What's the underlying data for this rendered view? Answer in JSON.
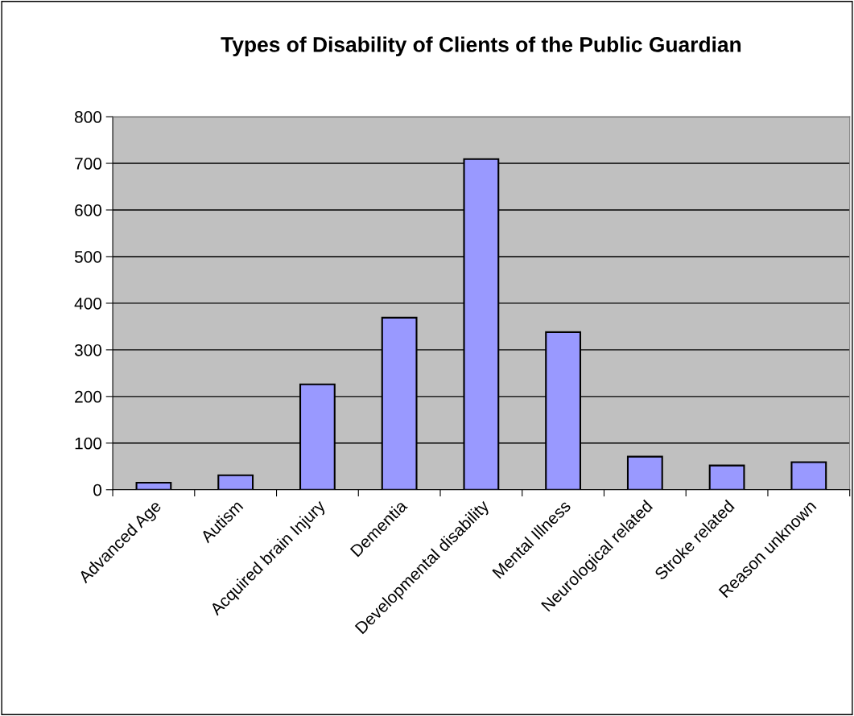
{
  "chart_data": {
    "type": "bar",
    "title": "Types of Disability of Clients of the Public Guardian",
    "categories": [
      "Advanced Age",
      "Autism",
      "Acquired brain Injury",
      "Dementia",
      "Developmental disability",
      "Mental Illness",
      "Neurological related",
      "Stroke related",
      "Reason unknown"
    ],
    "values": [
      15,
      31,
      226,
      369,
      709,
      338,
      71,
      52,
      59
    ],
    "color": "#9999ff",
    "ylim": [
      0,
      800
    ],
    "yticks": [
      0,
      100,
      200,
      300,
      400,
      500,
      600,
      700,
      800
    ],
    "grid": "y"
  }
}
